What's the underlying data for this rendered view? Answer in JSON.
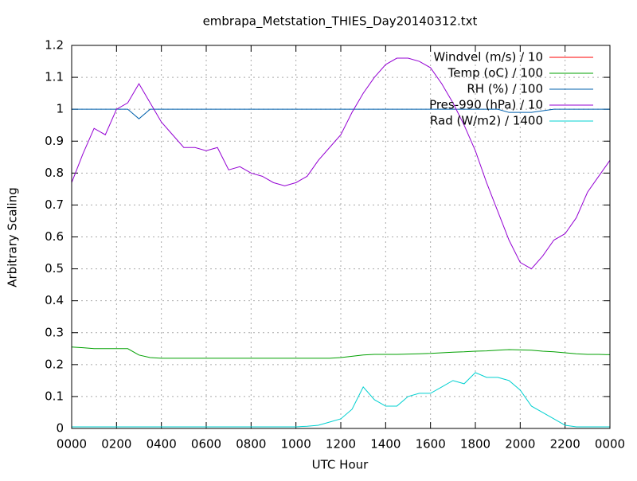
{
  "chart_data": {
    "type": "line",
    "title": "embrapa_Metstation_THIES_Day20140312.txt",
    "xlabel": "UTC Hour",
    "ylabel": "Arbitrary Scaling",
    "x": [
      0,
      0.5,
      1,
      1.5,
      2,
      2.5,
      3,
      3.5,
      4,
      4.5,
      5,
      5.5,
      6,
      6.5,
      7,
      7.5,
      8,
      8.5,
      9,
      9.5,
      10,
      10.5,
      11,
      11.5,
      12,
      12.5,
      13,
      13.5,
      14,
      14.5,
      15,
      15.5,
      16,
      16.5,
      17,
      17.5,
      18,
      18.5,
      19,
      19.5,
      20,
      20.5,
      21,
      21.5,
      22,
      22.5,
      23,
      23.5,
      24
    ],
    "xlim": [
      0,
      24
    ],
    "xticks": [
      {
        "value": 0,
        "label": "0000"
      },
      {
        "value": 2,
        "label": "0200"
      },
      {
        "value": 4,
        "label": "0400"
      },
      {
        "value": 6,
        "label": "0600"
      },
      {
        "value": 8,
        "label": "0800"
      },
      {
        "value": 10,
        "label": "1000"
      },
      {
        "value": 12,
        "label": "1200"
      },
      {
        "value": 14,
        "label": "1400"
      },
      {
        "value": 16,
        "label": "1600"
      },
      {
        "value": 18,
        "label": "1800"
      },
      {
        "value": 20,
        "label": "2000"
      },
      {
        "value": 22,
        "label": "2200"
      },
      {
        "value": 24,
        "label": "0000"
      }
    ],
    "ylim": [
      0,
      1.2
    ],
    "yticks": [
      0,
      0.1,
      0.2,
      0.3,
      0.4,
      0.5,
      0.6,
      0.7,
      0.8,
      0.9,
      1,
      1.1,
      1.2
    ],
    "grid": true,
    "legend": "top-right",
    "series": [
      {
        "name": "Windvel (m/s) / 10",
        "color": "#ff0000",
        "values": [
          0,
          0,
          0,
          0,
          0,
          0,
          0,
          0,
          0,
          0,
          0,
          0,
          0,
          0,
          0,
          0,
          0,
          0,
          0,
          0,
          0,
          0,
          0,
          0,
          0,
          0,
          0,
          0,
          0,
          0,
          0,
          0,
          0,
          0,
          0,
          0,
          0,
          0,
          0,
          0,
          0,
          0,
          0,
          0,
          0,
          0,
          0,
          0,
          0
        ]
      },
      {
        "name": "Temp (oC) / 100",
        "color": "#00a000",
        "values": [
          0.255,
          0.253,
          0.25,
          0.25,
          0.25,
          0.25,
          0.23,
          0.222,
          0.22,
          0.22,
          0.22,
          0.22,
          0.22,
          0.22,
          0.22,
          0.22,
          0.22,
          0.22,
          0.22,
          0.22,
          0.22,
          0.22,
          0.22,
          0.22,
          0.222,
          0.226,
          0.23,
          0.232,
          0.232,
          0.232,
          0.233,
          0.234,
          0.235,
          0.237,
          0.239,
          0.24,
          0.242,
          0.243,
          0.245,
          0.247,
          0.246,
          0.245,
          0.242,
          0.24,
          0.237,
          0.234,
          0.232,
          0.232,
          0.231
        ]
      },
      {
        "name": "RH (%) / 100",
        "color": "#0060ad",
        "values": [
          1,
          1,
          1,
          1,
          1,
          1,
          0.97,
          1,
          1,
          1,
          1,
          1,
          1,
          1,
          1,
          1,
          1,
          1,
          1,
          1,
          1,
          1,
          1,
          1,
          1,
          1,
          1,
          1,
          1,
          1,
          1,
          1,
          1,
          1,
          1,
          1,
          1,
          1,
          1,
          0.99,
          0.99,
          0.99,
          0.995,
          1,
          1,
          1,
          1,
          1,
          1
        ]
      },
      {
        "name": "Pres-990 (hPa) / 10",
        "color": "#9400d3",
        "values": [
          0.77,
          0.86,
          0.94,
          0.92,
          1.0,
          1.02,
          1.08,
          1.02,
          0.96,
          0.92,
          0.88,
          0.88,
          0.87,
          0.88,
          0.81,
          0.82,
          0.8,
          0.79,
          0.77,
          0.76,
          0.77,
          0.79,
          0.84,
          0.88,
          0.92,
          0.99,
          1.05,
          1.1,
          1.14,
          1.16,
          1.16,
          1.15,
          1.13,
          1.08,
          1.02,
          0.95,
          0.87,
          0.77,
          0.68,
          0.59,
          0.52,
          0.5,
          0.54,
          0.59,
          0.61,
          0.66,
          0.74,
          0.79,
          0.84
        ]
      },
      {
        "name": "Rad (W/m2) / 1400",
        "color": "#00d0d0",
        "values": [
          0.005,
          0.005,
          0.005,
          0.005,
          0.005,
          0.005,
          0.005,
          0.005,
          0.005,
          0.005,
          0.005,
          0.005,
          0.005,
          0.005,
          0.005,
          0.005,
          0.005,
          0.005,
          0.005,
          0.005,
          0.005,
          0.007,
          0.01,
          0.02,
          0.03,
          0.06,
          0.13,
          0.09,
          0.07,
          0.07,
          0.1,
          0.11,
          0.11,
          0.13,
          0.15,
          0.14,
          0.175,
          0.16,
          0.16,
          0.15,
          0.12,
          0.07,
          0.05,
          0.03,
          0.01,
          0.005,
          0.005,
          0.005,
          0.005
        ]
      }
    ]
  }
}
